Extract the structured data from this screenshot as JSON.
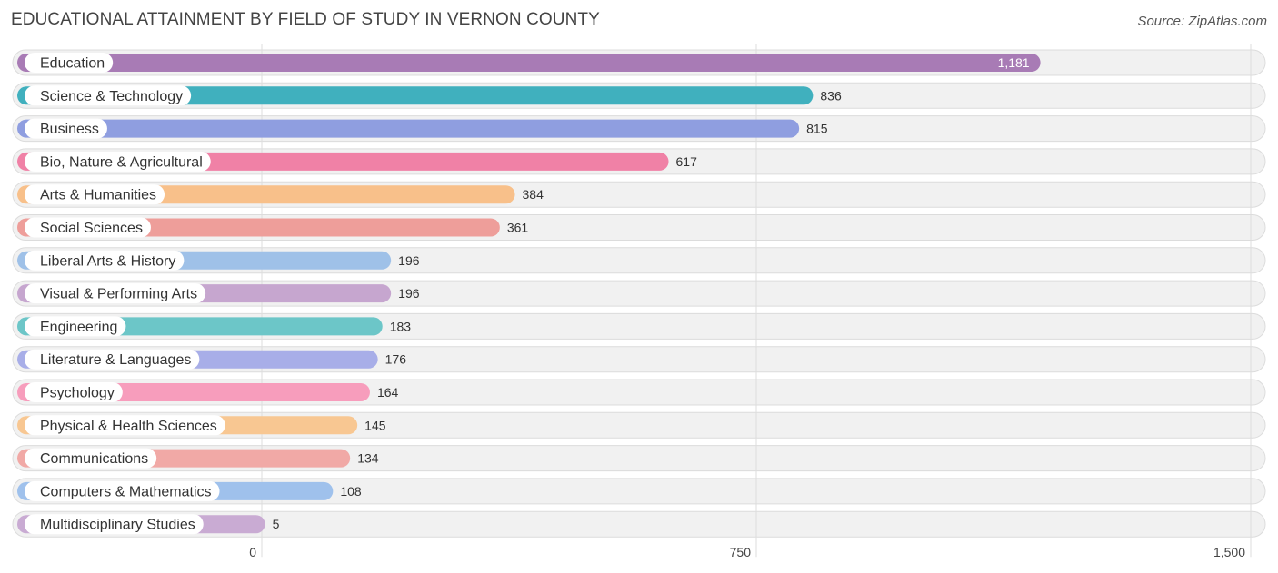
{
  "header": {
    "title": "EDUCATIONAL ATTAINMENT BY FIELD OF STUDY IN VERNON COUNTY",
    "source": "Source: ZipAtlas.com"
  },
  "chart_data": {
    "type": "bar",
    "orientation": "horizontal",
    "title": "EDUCATIONAL ATTAINMENT BY FIELD OF STUDY IN VERNON COUNTY",
    "xlabel": "",
    "ylabel": "",
    "xlim": [
      0,
      1500
    ],
    "ticks": [
      0,
      750,
      1500
    ],
    "tick_labels": [
      "0",
      "750",
      "1,500"
    ],
    "categories": [
      "Education",
      "Science & Technology",
      "Business",
      "Bio, Nature & Agricultural",
      "Arts & Humanities",
      "Social Sciences",
      "Liberal Arts & History",
      "Visual & Performing Arts",
      "Engineering",
      "Literature & Languages",
      "Psychology",
      "Physical & Health Sciences",
      "Communications",
      "Computers & Mathematics",
      "Multidisciplinary Studies"
    ],
    "values": [
      1181,
      836,
      815,
      617,
      384,
      361,
      196,
      196,
      183,
      176,
      164,
      145,
      134,
      108,
      5
    ],
    "value_labels": [
      "1,181",
      "836",
      "815",
      "617",
      "384",
      "361",
      "196",
      "196",
      "183",
      "176",
      "164",
      "145",
      "134",
      "108",
      "5"
    ],
    "colors": [
      "#a87bb5",
      "#40b0be",
      "#8f9ee0",
      "#f081a6",
      "#f8c08a",
      "#ee9e9a",
      "#9fc1e8",
      "#c6a6cf",
      "#6cc6c8",
      "#a8aee8",
      "#f79dbc",
      "#f8c792",
      "#f1a9a6",
      "#9fc1ec",
      "#c9abd3"
    ]
  }
}
